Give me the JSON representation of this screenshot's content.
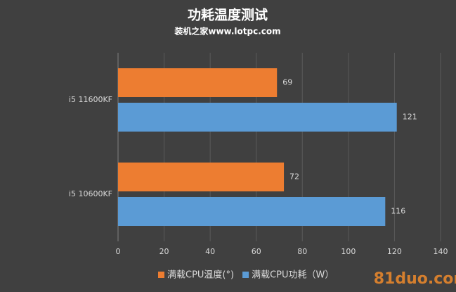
{
  "chart_data": {
    "type": "hbar",
    "title": "功耗温度测试",
    "subtitle": "装机之家www.lotpc.com",
    "categories": [
      "i5 11600KF",
      "i5 10600KF"
    ],
    "series": [
      {
        "name": "满载CPU温度(°)",
        "color": "#ed7d31",
        "values": [
          69,
          72
        ]
      },
      {
        "name": "满载CPU功耗（W）",
        "color": "#5b9bd5",
        "values": [
          121,
          116
        ]
      }
    ],
    "xlim": [
      0,
      140
    ],
    "xticks": [
      0,
      20,
      40,
      60,
      80,
      100,
      120,
      140
    ],
    "grid": true,
    "legend": "bottom",
    "watermark": "81duo.com"
  }
}
